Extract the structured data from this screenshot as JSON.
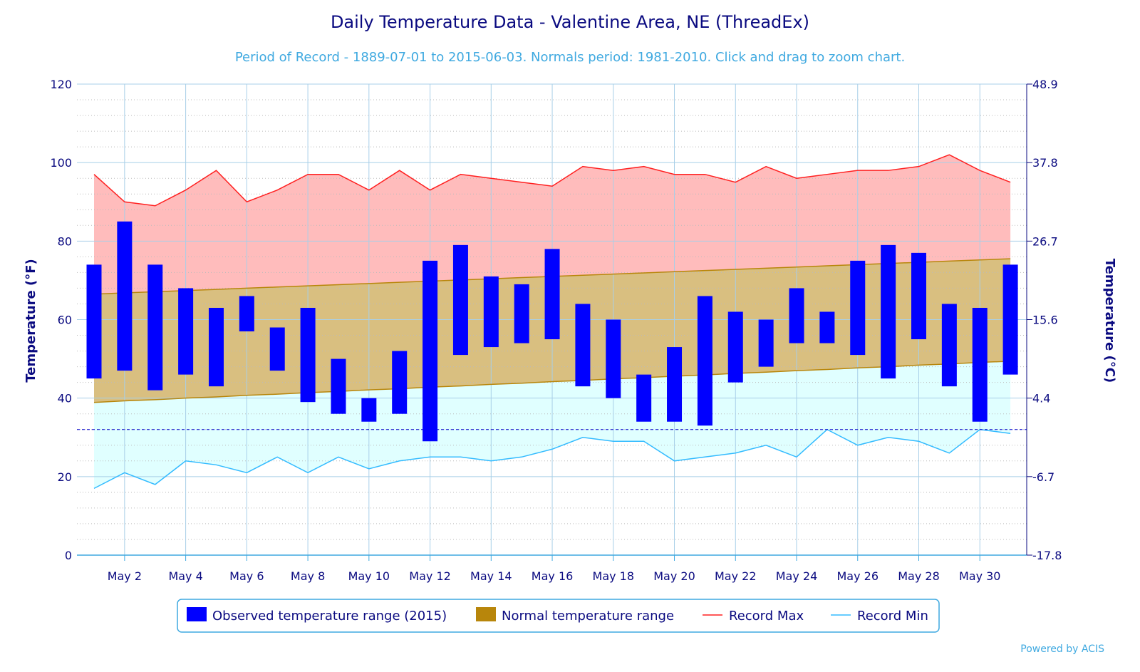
{
  "chart_data": {
    "type": "bar",
    "title": "Daily Temperature Data - Valentine Area, NE (ThreadEx)",
    "subtitle": "Period of Record - 1889-07-01 to 2015-06-03. Normals period: 1981-2010. Click and drag to zoom chart.",
    "ylabel": "Temperature (°F)",
    "ylabel_right": "Temperature (°C)",
    "ylim": [
      0,
      120
    ],
    "yticks": [
      0,
      20,
      40,
      60,
      80,
      100,
      120
    ],
    "yticks_right": [
      "-17.8",
      "-6.7",
      "4.4",
      "15.6",
      "26.7",
      "37.8",
      "48.9"
    ],
    "x_days": [
      1,
      2,
      3,
      4,
      5,
      6,
      7,
      8,
      9,
      10,
      11,
      12,
      13,
      14,
      15,
      16,
      17,
      18,
      19,
      20,
      21,
      22,
      23,
      24,
      25,
      26,
      27,
      28,
      29,
      30,
      31
    ],
    "xtick_labels": [
      "May 2",
      "May 4",
      "May 6",
      "May 8",
      "May 10",
      "May 12",
      "May 14",
      "May 16",
      "May 18",
      "May 20",
      "May 22",
      "May 24",
      "May 26",
      "May 28",
      "May 30"
    ],
    "xtick_days": [
      2,
      4,
      6,
      8,
      10,
      12,
      14,
      16,
      18,
      20,
      22,
      24,
      26,
      28,
      30
    ],
    "freezing_line": 32,
    "grid": true,
    "legend_placement": "bottom",
    "series": [
      {
        "name": "Observed temperature range (2015)",
        "type": "range-bar",
        "color": "#0000ff",
        "high": [
          74,
          85,
          74,
          68,
          63,
          66,
          58,
          63,
          50,
          40,
          52,
          75,
          79,
          71,
          69,
          78,
          64,
          60,
          46,
          53,
          66,
          62,
          60,
          68,
          62,
          75,
          79,
          77,
          64,
          63,
          74
        ],
        "low": [
          45,
          47,
          42,
          46,
          43,
          57,
          47,
          39,
          36,
          34,
          36,
          29,
          51,
          53,
          54,
          55,
          43,
          40,
          34,
          34,
          33,
          44,
          48,
          54,
          54,
          51,
          45,
          55,
          43,
          34,
          46
        ]
      },
      {
        "name": "Normal temperature range",
        "type": "range-area",
        "color": "#b8860b",
        "high": [
          66.5,
          66.8,
          67.1,
          67.4,
          67.7,
          68.0,
          68.3,
          68.6,
          68.9,
          69.2,
          69.5,
          69.8,
          70.1,
          70.4,
          70.7,
          71.0,
          71.3,
          71.6,
          71.9,
          72.2,
          72.5,
          72.8,
          73.1,
          73.4,
          73.7,
          74.0,
          74.3,
          74.6,
          74.9,
          75.2,
          75.5
        ],
        "low": [
          38.9,
          39.3,
          39.6,
          40.0,
          40.3,
          40.7,
          41.0,
          41.4,
          41.7,
          42.1,
          42.4,
          42.8,
          43.1,
          43.5,
          43.8,
          44.2,
          44.5,
          44.9,
          45.2,
          45.6,
          45.9,
          46.3,
          46.6,
          47.0,
          47.3,
          47.7,
          48.0,
          48.4,
          48.7,
          49.1,
          49.4
        ]
      },
      {
        "name": "Record Max",
        "type": "line",
        "color": "#ff2020",
        "values": [
          97,
          90,
          89,
          93,
          98,
          90,
          93,
          97,
          97,
          93,
          98,
          93,
          97,
          96,
          95,
          94,
          99,
          98,
          99,
          97,
          97,
          95,
          99,
          96,
          97,
          98,
          98,
          99,
          102,
          98,
          95
        ]
      },
      {
        "name": "Record Min",
        "type": "line",
        "color": "#33bbff",
        "values": [
          17,
          21,
          18,
          24,
          23,
          21,
          25,
          21,
          25,
          22,
          24,
          25,
          25,
          24,
          25,
          27,
          30,
          29,
          29,
          24,
          25,
          26,
          28,
          25,
          32,
          28,
          30,
          29,
          26,
          32,
          31
        ]
      }
    ],
    "credit": "Powered by ACIS"
  }
}
